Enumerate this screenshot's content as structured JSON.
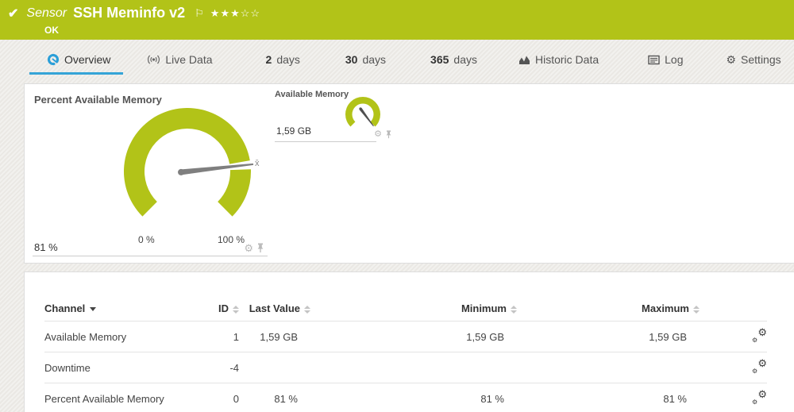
{
  "header": {
    "kind_label": "Sensor",
    "title": "SSH Meminfo v2",
    "status": "OK",
    "stars": "★★★☆☆"
  },
  "tabs": [
    {
      "label": "Overview"
    },
    {
      "label": "Live Data"
    },
    {
      "prefix": "2",
      "label": "days"
    },
    {
      "prefix": "30",
      "label": "days"
    },
    {
      "prefix": "365",
      "label": "days"
    },
    {
      "label": "Historic Data"
    },
    {
      "label": "Log"
    },
    {
      "label": "Settings"
    }
  ],
  "gauges": {
    "primary": {
      "title": "Percent Available Memory",
      "value": "81 %",
      "percent": 81,
      "min_label": "0 %",
      "max_label": "100 %",
      "avg_marker": "x̄"
    },
    "secondary": {
      "title": "Available Memory",
      "value": "1,59 GB"
    }
  },
  "table": {
    "columns": {
      "channel": "Channel",
      "id": "ID",
      "last": "Last Value",
      "min": "Minimum",
      "max": "Maximum"
    },
    "rows": [
      {
        "channel": "Available Memory",
        "id": "1",
        "last": "1,59 GB",
        "min": "1,59 GB",
        "max": "1,59 GB"
      },
      {
        "channel": "Downtime",
        "id": "-4",
        "last": "",
        "min": "",
        "max": ""
      },
      {
        "channel": "Percent Available Memory",
        "id": "0",
        "last": "81 %",
        "min": "81 %",
        "max": "81 %"
      }
    ]
  },
  "colors": {
    "brand_green": "#b2c318",
    "accent_blue": "#35a4d7",
    "needle_gray": "#7f7f7f"
  }
}
